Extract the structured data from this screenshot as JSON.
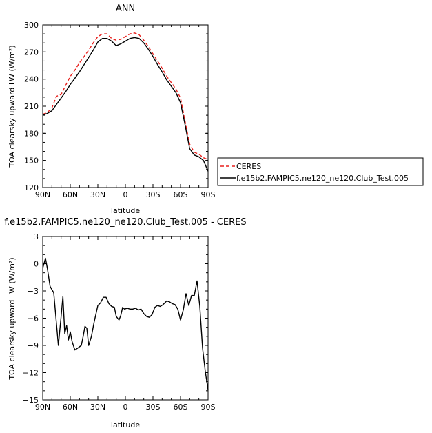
{
  "chart_data": [
    {
      "type": "line",
      "title": "ANN",
      "xlabel": "latitude",
      "ylabel": "TOA clearsky upward LW (W/m²)",
      "xlim": [
        90,
        -90
      ],
      "ylim": [
        120,
        300
      ],
      "xticks": [
        90,
        60,
        30,
        0,
        -30,
        -60,
        -90
      ],
      "xticklabels": [
        "90N",
        "60N",
        "30N",
        "0",
        "30S",
        "60S",
        "90S"
      ],
      "yticks": [
        120,
        150,
        180,
        210,
        240,
        270,
        300
      ],
      "yticklabels": [
        "120",
        "150",
        "180",
        "210",
        "240",
        "270",
        "300"
      ],
      "x": [
        90,
        85,
        80,
        75,
        70,
        65,
        60,
        55,
        50,
        45,
        40,
        35,
        30,
        25,
        20,
        15,
        10,
        5,
        0,
        -5,
        -10,
        -15,
        -20,
        -25,
        -30,
        -35,
        -40,
        -45,
        -50,
        -55,
        -60,
        -65,
        -70,
        -75,
        -80,
        -85,
        -90
      ],
      "series": [
        {
          "name": "CERES",
          "color": "#e8211d",
          "dash": "dashed",
          "values": [
            201,
            203,
            208,
            221,
            223,
            233,
            243,
            250,
            258,
            265,
            272,
            280,
            287,
            290,
            290,
            285,
            283,
            284,
            287,
            290,
            291,
            289,
            283,
            276,
            268,
            260,
            252,
            243,
            236,
            229,
            219,
            193,
            168,
            159,
            157,
            153,
            151
          ]
        },
        {
          "name": "f.e15b2.FAMPIC5.ne120_ne120.Club_Test.005",
          "color": "#000000",
          "dash": "solid",
          "values": [
            200,
            202,
            205,
            212,
            219,
            226,
            234,
            241,
            248,
            256,
            264,
            272,
            281,
            285,
            285,
            282,
            277,
            279,
            282,
            285,
            286,
            285,
            280,
            273,
            265,
            256,
            248,
            239,
            232,
            225,
            214,
            189,
            163,
            156,
            154,
            150,
            138
          ]
        }
      ],
      "legend": "right"
    },
    {
      "type": "line",
      "title": "f.e15b2.FAMPIC5.ne120_ne120.Club_Test.005 - CERES",
      "xlabel": "latitude",
      "ylabel": "TOA clearsky upward LW (W/m²)",
      "xlim": [
        90,
        -90
      ],
      "ylim": [
        -15,
        3
      ],
      "xticks": [
        90,
        60,
        30,
        0,
        -30,
        -60,
        -90
      ],
      "xticklabels": [
        "90N",
        "60N",
        "30N",
        "0",
        "30S",
        "60S",
        "90S"
      ],
      "yticks": [
        3,
        0,
        -3,
        -6,
        -9,
        -12,
        -15
      ],
      "yticklabels": [
        "3",
        "0",
        "−3",
        "−6",
        "−9",
        "−12",
        "−15"
      ],
      "series": [
        {
          "name": "",
          "color": "#000000",
          "dash": "solid",
          "x": [
            90,
            87,
            85,
            82,
            78,
            73,
            70,
            68,
            66,
            64,
            62,
            60,
            58,
            55,
            52,
            48,
            46,
            44,
            42,
            40,
            37,
            34,
            30,
            27,
            24,
            21,
            18,
            15,
            12,
            10,
            7,
            5,
            3,
            1,
            -2,
            -5,
            -8,
            -11,
            -14,
            -17,
            -20,
            -23,
            -26,
            -29,
            -32,
            -35,
            -38,
            -41,
            -45,
            -48,
            -51,
            -54,
            -57,
            -60,
            -63,
            -66,
            -69,
            -72,
            -75,
            -78,
            -81,
            -84,
            -87,
            -90
          ],
          "values": [
            -0.5,
            0.6,
            -0.5,
            -2.5,
            -3.2,
            -9.0,
            -5.8,
            -3.6,
            -7.7,
            -6.8,
            -8.4,
            -7.5,
            -8.6,
            -9.5,
            -9.3,
            -9.0,
            -8.0,
            -6.9,
            -7.1,
            -9.0,
            -8.0,
            -6.4,
            -4.6,
            -4.3,
            -3.7,
            -3.7,
            -4.4,
            -4.7,
            -4.8,
            -5.8,
            -6.2,
            -5.7,
            -4.8,
            -5.0,
            -4.9,
            -5.0,
            -5.0,
            -4.9,
            -5.1,
            -5.0,
            -5.5,
            -5.8,
            -5.9,
            -5.6,
            -4.8,
            -4.6,
            -4.7,
            -4.5,
            -4.1,
            -4.2,
            -4.4,
            -4.5,
            -5.0,
            -6.2,
            -5.1,
            -3.3,
            -4.6,
            -3.5,
            -3.5,
            -1.9,
            -4.7,
            -9.3,
            -11.9,
            -13.9
          ]
        }
      ]
    }
  ]
}
